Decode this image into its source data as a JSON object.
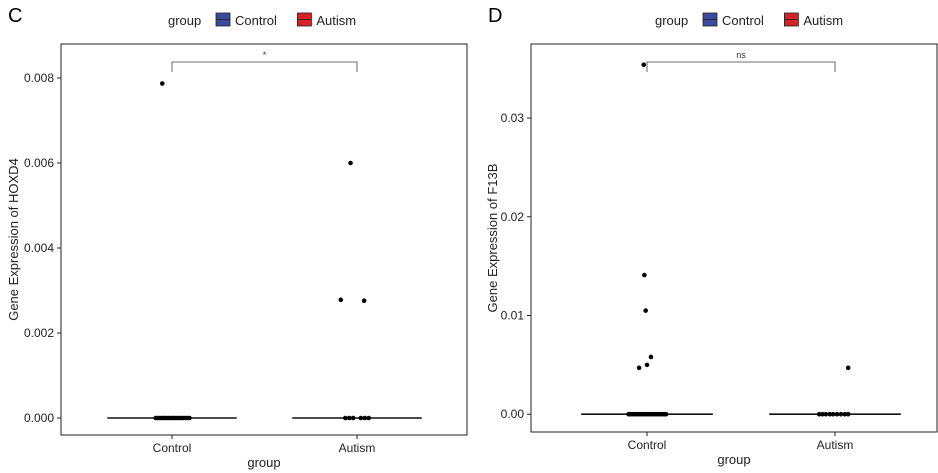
{
  "chart_data": [
    {
      "panel_label": "C",
      "type": "scatter",
      "xlabel": "group",
      "ylabel": "Gene Expression of HOXD4",
      "categories": [
        "Control",
        "Autism"
      ],
      "ylim": [
        -0.0004,
        0.0088
      ],
      "yticks": [
        0.0,
        0.002,
        0.004,
        0.006,
        0.008
      ],
      "ytick_labels": [
        "0.000",
        "0.002",
        "0.004",
        "0.006",
        "0.008"
      ],
      "legend": {
        "title": "group",
        "entries": [
          {
            "name": "Control",
            "color": "#3b4a9c"
          },
          {
            "name": "Autism",
            "color": "#d6232a"
          }
        ],
        "position": "top"
      },
      "significance": "*",
      "medians": [
        0.0,
        0.0
      ],
      "series": [
        {
          "name": "Control",
          "points": [
            [
              -0.25,
              0.0
            ],
            [
              -0.22,
              0.0
            ],
            [
              -0.19,
              0.0
            ],
            [
              -0.16,
              0.0
            ],
            [
              -0.13,
              0.0
            ],
            [
              -0.11,
              0.0
            ],
            [
              -0.08,
              0.0
            ],
            [
              -0.05,
              0.0
            ],
            [
              -0.02,
              0.0
            ],
            [
              0.01,
              0.0
            ],
            [
              0.03,
              0.0
            ],
            [
              0.06,
              0.0
            ],
            [
              0.09,
              0.0
            ],
            [
              0.12,
              0.0
            ],
            [
              0.15,
              0.0
            ],
            [
              0.18,
              0.0
            ],
            [
              0.21,
              0.0
            ],
            [
              0.24,
              0.0
            ],
            [
              0.27,
              0.0
            ],
            [
              -0.15,
              0.00787
            ]
          ]
        },
        {
          "name": "Autism",
          "points": [
            [
              -0.18,
              0.0
            ],
            [
              -0.12,
              0.0
            ],
            [
              -0.06,
              0.0
            ],
            [
              0.06,
              0.0
            ],
            [
              0.12,
              0.0
            ],
            [
              0.18,
              0.0
            ],
            [
              -0.25,
              0.00278
            ],
            [
              0.11,
              0.00276
            ],
            [
              -0.1,
              0.006
            ]
          ]
        }
      ]
    },
    {
      "panel_label": "D",
      "type": "scatter",
      "xlabel": "group",
      "ylabel": "Gene Expression of F13B",
      "categories": [
        "Control",
        "Autism"
      ],
      "ylim": [
        -0.0018,
        0.0375
      ],
      "yticks": [
        0.0,
        0.01,
        0.02,
        0.03
      ],
      "ytick_labels": [
        "0.00",
        "0.01",
        "0.02",
        "0.03"
      ],
      "legend": {
        "title": "group",
        "entries": [
          {
            "name": "Control",
            "color": "#3b4a9c"
          },
          {
            "name": "Autism",
            "color": "#d6232a"
          }
        ],
        "position": "top"
      },
      "significance": "ns",
      "medians": [
        0.0,
        0.0
      ],
      "series": [
        {
          "name": "Control",
          "points": [
            [
              -0.28,
              0.0
            ],
            [
              -0.25,
              0.0
            ],
            [
              -0.22,
              0.0
            ],
            [
              -0.19,
              0.0
            ],
            [
              -0.16,
              0.0
            ],
            [
              -0.13,
              0.0
            ],
            [
              -0.1,
              0.0
            ],
            [
              -0.07,
              0.0
            ],
            [
              -0.04,
              0.0
            ],
            [
              -0.01,
              0.0
            ],
            [
              0.02,
              0.0
            ],
            [
              0.05,
              0.0
            ],
            [
              0.08,
              0.0
            ],
            [
              0.11,
              0.0
            ],
            [
              0.14,
              0.0
            ],
            [
              0.17,
              0.0
            ],
            [
              0.2,
              0.0
            ],
            [
              0.23,
              0.0
            ],
            [
              0.26,
              0.0
            ],
            [
              0.29,
              0.0
            ],
            [
              -0.05,
              0.0354
            ],
            [
              -0.04,
              0.0141
            ],
            [
              -0.02,
              0.0105
            ],
            [
              0.0,
              0.005
            ],
            [
              0.06,
              0.0058
            ],
            [
              -0.12,
              0.0047
            ]
          ]
        },
        {
          "name": "Autism",
          "points": [
            [
              -0.24,
              0.0
            ],
            [
              -0.19,
              0.0
            ],
            [
              -0.14,
              0.0
            ],
            [
              -0.08,
              0.0
            ],
            [
              -0.03,
              0.0
            ],
            [
              0.03,
              0.0
            ],
            [
              0.09,
              0.0
            ],
            [
              0.15,
              0.0
            ],
            [
              0.2,
              0.0
            ],
            [
              0.2,
              0.0047
            ]
          ]
        }
      ]
    }
  ]
}
